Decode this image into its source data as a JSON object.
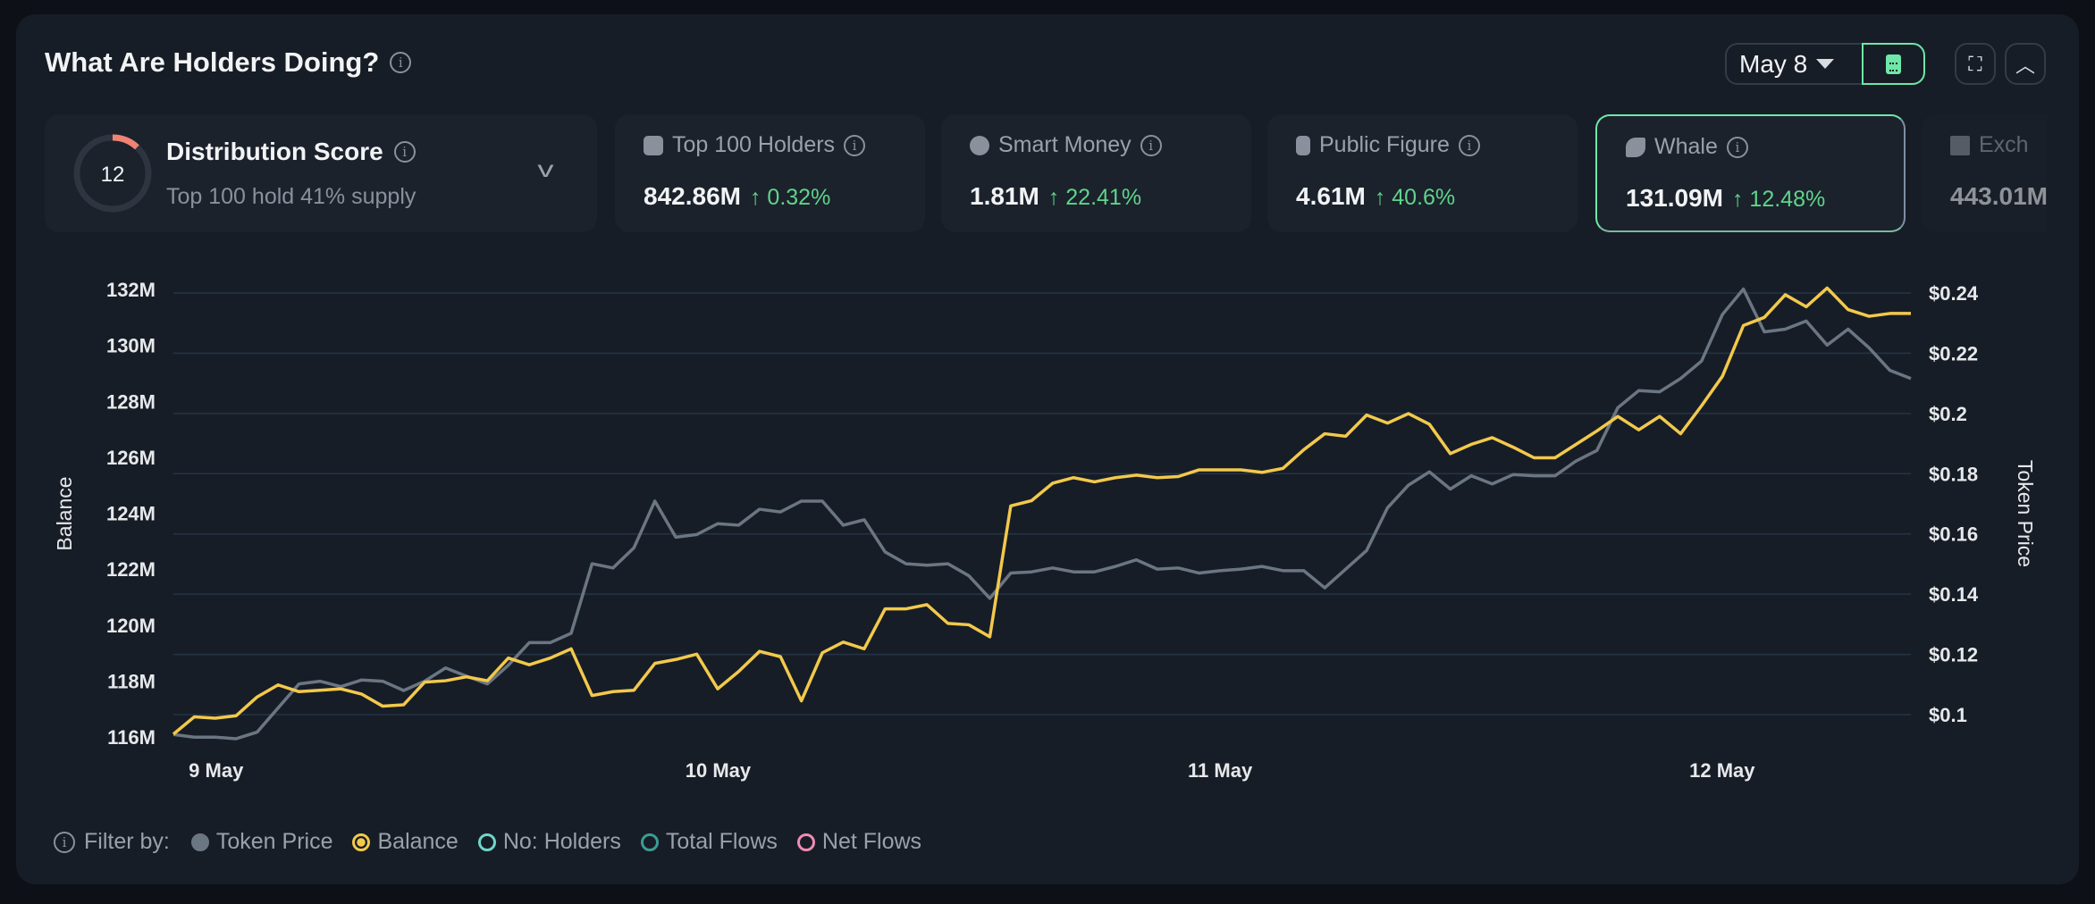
{
  "header": {
    "title": "What Are Holders Doing?",
    "date": "May 8"
  },
  "distribution": {
    "title": "Distribution Score",
    "score": "12",
    "score_fraction": 0.12,
    "subtitle": "Top 100 hold 41% supply"
  },
  "cards": [
    {
      "label": "Top 100 Holders",
      "value": "842.86M",
      "change": "↑ 0.32%",
      "icon": "cash-icon"
    },
    {
      "label": "Smart Money",
      "value": "1.81M",
      "change": "↑ 22.41%",
      "icon": "sunglasses-icon"
    },
    {
      "label": "Public Figure",
      "value": "4.61M",
      "change": "↑ 40.6%",
      "icon": "spotlight-icon"
    },
    {
      "label": "Whale",
      "value": "131.09M",
      "change": "↑ 12.48%",
      "icon": "whale-icon"
    },
    {
      "label": "Exch",
      "value": "443.01M",
      "icon": "bank-icon"
    }
  ],
  "legend": {
    "label": "Filter by:",
    "items": [
      {
        "name": "Token Price",
        "color": "#6b7683"
      },
      {
        "name": "Balance",
        "color": "#f2c94c"
      },
      {
        "name": "No: Holders",
        "color": "#6fd6c9"
      },
      {
        "name": "Total Flows",
        "color": "#3a9c94"
      },
      {
        "name": "Net Flows",
        "color": "#f08bb4"
      }
    ]
  },
  "chart_data": {
    "type": "line",
    "x_range_days": [
      8.915,
      12.376
    ],
    "x_ticks": [
      {
        "day": 9,
        "label": "9 May"
      },
      {
        "day": 10,
        "label": "10 May"
      },
      {
        "day": 11,
        "label": "11 May"
      },
      {
        "day": 12,
        "label": "12 May"
      }
    ],
    "ylabel_left": "Balance",
    "ylabel_right": "Token Price",
    "y_left_ticks": [
      "116M",
      "118M",
      "120M",
      "122M",
      "124M",
      "126M",
      "128M",
      "130M",
      "132M"
    ],
    "y_left_range": [
      116,
      132
    ],
    "y_right_ticks": [
      "$0.1",
      "$0.12",
      "$0.14",
      "$0.16",
      "$0.18",
      "$0.2",
      "$0.22",
      "$0.24"
    ],
    "y_right_range": [
      0.1,
      0.24
    ],
    "grid": true,
    "series": [
      {
        "name": "Token Price",
        "axis": "right",
        "color": "#6b7683",
        "values": [
          0.0934,
          0.0925,
          0.0925,
          0.092,
          0.0942,
          0.1022,
          0.1102,
          0.1111,
          0.1093,
          0.1115,
          0.1111,
          0.108,
          0.1111,
          0.1155,
          0.1128,
          0.1102,
          0.1164,
          0.1239,
          0.1239,
          0.127,
          0.1501,
          0.1487,
          0.1554,
          0.1709,
          0.1589,
          0.1598,
          0.1634,
          0.1629,
          0.1682,
          0.1673,
          0.1709,
          0.1709,
          0.1629,
          0.1647,
          0.154,
          0.1501,
          0.1496,
          0.1501,
          0.1461,
          0.1386,
          0.147,
          0.1474,
          0.1487,
          0.1474,
          0.1474,
          0.1492,
          0.1514,
          0.1483,
          0.1487,
          0.147,
          0.1478,
          0.1483,
          0.1492,
          0.1478,
          0.1478,
          0.1421,
          0.1483,
          0.1545,
          0.1687,
          0.1762,
          0.1806,
          0.1749,
          0.1793,
          0.1766,
          0.1797,
          0.1793,
          0.1793,
          0.1842,
          0.1877,
          0.2019,
          0.2076,
          0.2072,
          0.2116,
          0.2174,
          0.2329,
          0.2413,
          0.2271,
          0.228,
          0.2307,
          0.2227,
          0.228,
          0.2218,
          0.2143,
          0.2116
        ]
      },
      {
        "name": "Balance",
        "axis": "left",
        "color": "#f2c94c",
        "values": [
          116.1,
          116.72,
          116.67,
          116.76,
          117.43,
          117.86,
          117.62,
          117.67,
          117.72,
          117.53,
          117.1,
          117.15,
          117.96,
          118.01,
          118.15,
          118.01,
          118.82,
          118.58,
          118.82,
          119.15,
          117.48,
          117.62,
          117.67,
          118.63,
          118.77,
          118.96,
          117.72,
          118.34,
          119.06,
          118.87,
          117.29,
          119.01,
          119.39,
          119.15,
          120.58,
          120.58,
          120.73,
          120.06,
          120.01,
          119.58,
          124.26,
          124.45,
          125.07,
          125.27,
          125.12,
          125.27,
          125.36,
          125.27,
          125.31,
          125.55,
          125.55,
          125.55,
          125.46,
          125.6,
          126.27,
          126.84,
          126.75,
          127.51,
          127.22,
          127.56,
          127.18,
          126.13,
          126.46,
          126.7,
          126.36,
          125.98,
          125.98,
          126.46,
          126.94,
          127.46,
          126.98,
          127.46,
          126.84,
          127.84,
          128.9,
          130.71,
          131.0,
          131.81,
          131.38,
          132.05,
          131.28,
          131.04,
          131.14,
          131.14
        ]
      }
    ]
  }
}
